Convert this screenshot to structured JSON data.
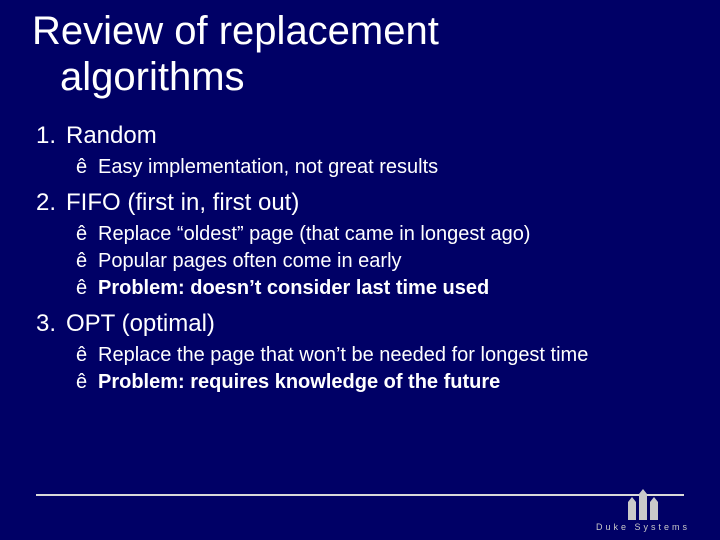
{
  "colors": {
    "background": "#000066",
    "text": "#ffffff",
    "footer_line": "#d9d9d9",
    "logo": "#c9c9c9"
  },
  "typography": {
    "title_fontsize": 40,
    "item_fontsize": 24,
    "subitem_fontsize": 20,
    "font_family": "Arial"
  },
  "title": {
    "line1": "Review of replacement",
    "line2": "algorithms"
  },
  "items": [
    {
      "num": "1.",
      "label": "Random",
      "subs": [
        {
          "arrow": "ê",
          "text": "Easy implementation, not great results"
        }
      ]
    },
    {
      "num": "2.",
      "label": "FIFO (first in, first out)",
      "subs": [
        {
          "arrow": "ê",
          "text": "Replace “oldest” page (that came in longest ago)"
        },
        {
          "arrow": "ê",
          "text": "Popular pages often come in early"
        },
        {
          "arrow": "ê",
          "bold_prefix": "Problem: doesn’t consider last time used"
        }
      ]
    },
    {
      "num": "3.",
      "label": "OPT (optimal)",
      "subs": [
        {
          "arrow": "ê",
          "text": "Replace the page that won’t be needed for longest time"
        },
        {
          "arrow": "ê",
          "bold_prefix": "Problem: requires knowledge of the future"
        }
      ]
    }
  ],
  "footer": {
    "logo_text": "Duke Systems"
  }
}
